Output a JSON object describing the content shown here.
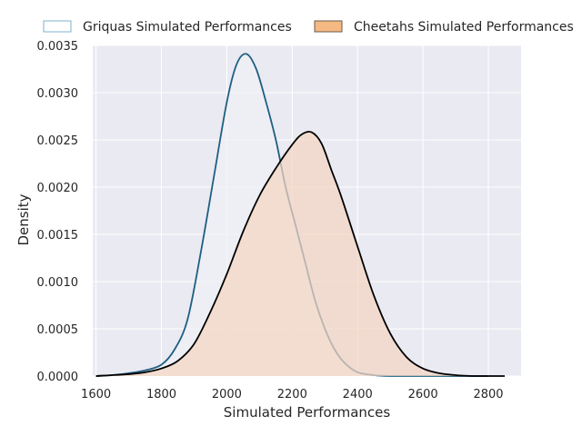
{
  "chart_data": {
    "type": "area",
    "xlabel": "Simulated Performances",
    "ylabel": "Density",
    "xlim": [
      1590,
      2900
    ],
    "ylim": [
      0,
      0.0035
    ],
    "x_ticks": [
      1600,
      1800,
      2000,
      2200,
      2400,
      2600,
      2800
    ],
    "y_ticks": [
      0.0,
      0.0005,
      0.001,
      0.0015,
      0.002,
      0.0025,
      0.003,
      0.0035
    ],
    "x_tick_labels": [
      "1600",
      "1800",
      "2000",
      "2200",
      "2400",
      "2600",
      "2800"
    ],
    "y_tick_labels": [
      "0.0000",
      "0.0005",
      "0.0010",
      "0.0015",
      "0.0020",
      "0.0025",
      "0.0030",
      "0.0035"
    ],
    "grid": true,
    "legend_position": "top",
    "series": [
      {
        "name": "Griquas Simulated Performances",
        "line_color": "#1f5f82",
        "fill_color": "#eef0f6",
        "legend_fill": "#ffffff",
        "legend_edge": "#7fb1cd",
        "x": [
          1600,
          1650,
          1700,
          1750,
          1800,
          1840,
          1880,
          1920,
          1960,
          2000,
          2030,
          2060,
          2090,
          2120,
          2150,
          2180,
          2210,
          2240,
          2270,
          2300,
          2330,
          2360,
          2400,
          2450,
          2500,
          2550,
          2600,
          2700,
          2800
        ],
        "y": [
          0,
          1e-05,
          3e-05,
          6e-05,
          0.00012,
          0.00028,
          0.0006,
          0.0013,
          0.0021,
          0.0029,
          0.0033,
          0.00341,
          0.00325,
          0.0029,
          0.0025,
          0.002,
          0.0016,
          0.0012,
          0.0008,
          0.0005,
          0.00028,
          0.00014,
          4e-05,
          1e-05,
          0,
          0,
          0,
          0,
          0
        ]
      },
      {
        "name": "Cheetahs Simulated Performances",
        "line_color": "#000000",
        "fill_color": "#f4d6c2",
        "legend_fill": "#f5b983",
        "legend_edge": "#6e5a4a",
        "x": [
          1600,
          1700,
          1750,
          1800,
          1850,
          1900,
          1950,
          2000,
          2050,
          2100,
          2150,
          2200,
          2230,
          2260,
          2290,
          2320,
          2350,
          2400,
          2450,
          2500,
          2550,
          2600,
          2650,
          2700,
          2750,
          2800,
          2850
        ],
        "y": [
          0,
          2e-05,
          4e-05,
          8e-05,
          0.00016,
          0.00034,
          0.00068,
          0.00108,
          0.00153,
          0.00191,
          0.0022,
          0.00245,
          0.00256,
          0.00258,
          0.00246,
          0.00218,
          0.0019,
          0.00137,
          0.00085,
          0.00045,
          0.0002,
          8e-05,
          3e-05,
          1e-05,
          0,
          0,
          0
        ]
      }
    ]
  }
}
